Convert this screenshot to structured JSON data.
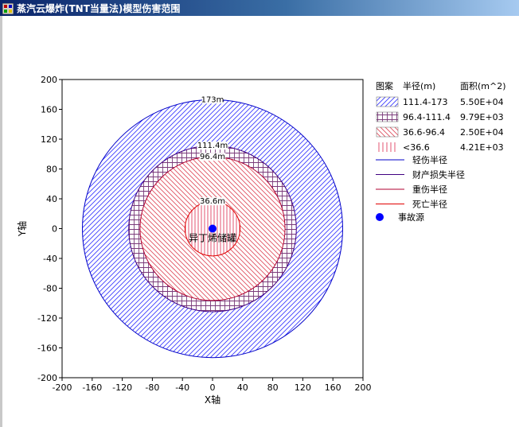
{
  "window": {
    "title": "蒸汽云爆炸(TNT当量法)模型伤害范围"
  },
  "colors": {
    "light_injury": "#0000c8",
    "property_loss": "#400080",
    "severe_injury": "#b00030",
    "death": "#e00000",
    "source": "#0000ff"
  },
  "chart_data": {
    "type": "area",
    "xlabel": "X轴",
    "ylabel": "Y轴",
    "xlim": [
      -200,
      200
    ],
    "ylim": [
      -200,
      200
    ],
    "xticks": [
      -200,
      -160,
      -120,
      -80,
      -40,
      0,
      40,
      80,
      120,
      160,
      200
    ],
    "yticks": [
      200,
      160,
      120,
      80,
      40,
      0,
      -40,
      -80,
      -120,
      -160,
      -200
    ],
    "source": {
      "x": 0,
      "y": 0,
      "label": "异丁烯储罐"
    },
    "circles": [
      {
        "key": "light_injury",
        "radius": 173,
        "label": "173m",
        "pattern": "diag-blue"
      },
      {
        "key": "property_loss",
        "radius": 111.4,
        "label": "111.4m",
        "pattern": "grid-purple"
      },
      {
        "key": "severe_injury",
        "radius": 96.4,
        "label": "96.4m",
        "pattern": "diag-red"
      },
      {
        "key": "death",
        "radius": 36.6,
        "label": "36.6m",
        "pattern": "vert-red"
      }
    ],
    "legend": {
      "headers": [
        "图案",
        "半径(m)",
        "面积(m^2)"
      ],
      "zones": [
        {
          "pattern": "diag-blue",
          "range": "111.4-173",
          "area": "5.50E+04"
        },
        {
          "pattern": "grid-purple",
          "range": "96.4-111.4",
          "area": "9.79E+03"
        },
        {
          "pattern": "diag-red",
          "range": "36.6-96.4",
          "area": "2.50E+04"
        },
        {
          "pattern": "vert-red",
          "range": "<36.6",
          "area": "4.21E+03"
        }
      ],
      "lines": [
        {
          "key": "light_injury",
          "label": "轻伤半径"
        },
        {
          "key": "property_loss",
          "label": "财产损失半径"
        },
        {
          "key": "severe_injury",
          "label": "重伤半径"
        },
        {
          "key": "death",
          "label": "死亡半径"
        }
      ],
      "source_label": "事故源"
    }
  }
}
